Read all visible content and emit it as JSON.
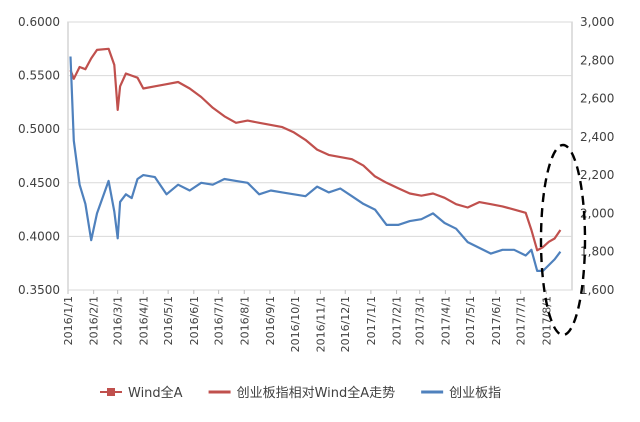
{
  "chart_data": {
    "type": "line",
    "x_tick_labels": [
      "2016/1/1",
      "2016/2/1",
      "2016/3/1",
      "2016/4/1",
      "2016/5/1",
      "2016/6/1",
      "2016/7/1",
      "2016/8/1",
      "2016/9/1",
      "2016/10/1",
      "2016/11/1",
      "2016/12/1",
      "2017/1/1",
      "2017/2/1",
      "2017/3/1",
      "2017/4/1",
      "2017/5/1",
      "2017/6/1",
      "2017/7/1",
      "2017/8/1"
    ],
    "y_left": {
      "range": [
        0.35,
        0.6
      ],
      "ticks": [
        "0.3500",
        "0.4000",
        "0.4500",
        "0.5000",
        "0.5500",
        "0.6000"
      ]
    },
    "y_right": {
      "range": [
        1600,
        3000
      ],
      "ticks": [
        "1,600",
        "1,800",
        "2,000",
        "2,200",
        "2,400",
        "2,600",
        "2,800",
        "3,000"
      ]
    },
    "grid": true,
    "legend_position": "bottom",
    "legend": [
      {
        "label": "Wind全A",
        "style": "square-marker",
        "color": "#c0504d"
      },
      {
        "label": "创业板指相对Wind全A走势",
        "style": "line",
        "color": "#c0504d"
      },
      {
        "label": "创业板指",
        "style": "line",
        "color": "#4f81bd"
      }
    ],
    "series": [
      {
        "name": "创业板指相对Wind全A走势",
        "axis": "left",
        "color": "#c0504d",
        "x": [
          "2016/1/4",
          "2016/1/8",
          "2016/1/15",
          "2016/1/22",
          "2016/1/29",
          "2016/2/5",
          "2016/2/19",
          "2016/2/26",
          "2016/3/1",
          "2016/3/4",
          "2016/3/11",
          "2016/3/18",
          "2016/3/25",
          "2016/4/1",
          "2016/4/15",
          "2016/4/29",
          "2016/5/13",
          "2016/5/27",
          "2016/6/10",
          "2016/6/24",
          "2016/7/8",
          "2016/7/22",
          "2016/8/5",
          "2016/8/19",
          "2016/9/2",
          "2016/9/16",
          "2016/9/30",
          "2016/10/14",
          "2016/10/28",
          "2016/11/11",
          "2016/11/25",
          "2016/12/9",
          "2016/12/23",
          "2017/1/6",
          "2017/1/20",
          "2017/2/3",
          "2017/2/17",
          "2017/3/3",
          "2017/3/17",
          "2017/3/31",
          "2017/4/14",
          "2017/4/28",
          "2017/5/12",
          "2017/5/26",
          "2017/6/9",
          "2017/6/23",
          "2017/7/7",
          "2017/7/14",
          "2017/7/21",
          "2017/7/28",
          "2017/8/4",
          "2017/8/11",
          "2017/8/18"
        ],
        "values": [
          0.555,
          0.547,
          0.558,
          0.556,
          0.566,
          0.574,
          0.575,
          0.56,
          0.518,
          0.54,
          0.552,
          0.55,
          0.548,
          0.538,
          0.54,
          0.542,
          0.544,
          0.538,
          0.53,
          0.52,
          0.512,
          0.506,
          0.508,
          0.506,
          0.504,
          0.502,
          0.497,
          0.49,
          0.481,
          0.476,
          0.474,
          0.472,
          0.466,
          0.456,
          0.45,
          0.445,
          0.44,
          0.438,
          0.44,
          0.436,
          0.43,
          0.427,
          0.432,
          0.43,
          0.428,
          0.425,
          0.422,
          0.406,
          0.387,
          0.39,
          0.395,
          0.398,
          0.406
        ]
      },
      {
        "name": "创业板指",
        "axis": "right",
        "color": "#4f81bd",
        "x": [
          "2016/1/4",
          "2016/1/8",
          "2016/1/15",
          "2016/1/22",
          "2016/1/29",
          "2016/2/5",
          "2016/2/19",
          "2016/2/26",
          "2016/3/1",
          "2016/3/4",
          "2016/3/11",
          "2016/3/18",
          "2016/3/25",
          "2016/4/1",
          "2016/4/15",
          "2016/4/29",
          "2016/5/13",
          "2016/5/27",
          "2016/6/10",
          "2016/6/24",
          "2016/7/8",
          "2016/7/22",
          "2016/8/5",
          "2016/8/19",
          "2016/9/2",
          "2016/9/16",
          "2016/9/30",
          "2016/10/14",
          "2016/10/28",
          "2016/11/11",
          "2016/11/25",
          "2016/12/9",
          "2016/12/23",
          "2017/1/6",
          "2017/1/20",
          "2017/2/3",
          "2017/2/17",
          "2017/3/3",
          "2017/3/17",
          "2017/3/31",
          "2017/4/14",
          "2017/4/28",
          "2017/5/12",
          "2017/5/26",
          "2017/6/9",
          "2017/6/23",
          "2017/7/7",
          "2017/7/14",
          "2017/7/21",
          "2017/7/28",
          "2017/8/4",
          "2017/8/11",
          "2017/8/18"
        ],
        "values": [
          2820,
          2380,
          2150,
          2050,
          1860,
          2000,
          2170,
          2010,
          1870,
          2060,
          2100,
          2080,
          2180,
          2200,
          2190,
          2100,
          2150,
          2120,
          2160,
          2150,
          2180,
          2170,
          2160,
          2100,
          2120,
          2110,
          2100,
          2090,
          2140,
          2110,
          2130,
          2090,
          2050,
          2020,
          1940,
          1940,
          1960,
          1970,
          2000,
          1950,
          1920,
          1850,
          1820,
          1790,
          1810,
          1810,
          1780,
          1810,
          1700,
          1700,
          1730,
          1760,
          1800
        ]
      }
    ],
    "annotation": {
      "shape": "dashed-ellipse",
      "target": "2017/7–2017/8"
    }
  }
}
